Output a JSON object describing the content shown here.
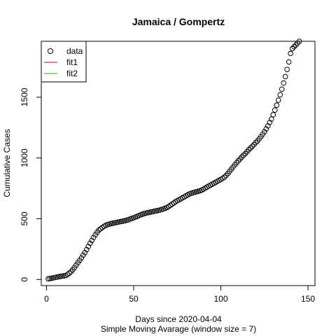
{
  "chart_data": {
    "type": "scatter",
    "title": "Jamaica / Gompertz",
    "xlabel": "Days since 2020-04-04",
    "xlabel_sub": "Simple Moving Avarage (window size = 7)",
    "ylabel": "Cumulative Cases",
    "xlim": [
      -3,
      154
    ],
    "ylim": [
      -50,
      1960
    ],
    "x_ticks": [
      0,
      50,
      100,
      150
    ],
    "y_ticks": [
      0,
      500,
      1000,
      1500
    ],
    "legend_position": "top-left",
    "legend": [
      {
        "label": "data",
        "kind": "point",
        "color": "#000000"
      },
      {
        "label": "fit1",
        "kind": "line",
        "color": "#DF536B"
      },
      {
        "label": "fit2",
        "kind": "line",
        "color": "#61D04F"
      }
    ],
    "series": [
      {
        "name": "data",
        "x": [
          1,
          2,
          3,
          4,
          5,
          6,
          7,
          8,
          9,
          10,
          11,
          12,
          13,
          14,
          15,
          16,
          17,
          18,
          19,
          20,
          21,
          22,
          23,
          24,
          25,
          26,
          27,
          28,
          29,
          30,
          31,
          32,
          33,
          34,
          35,
          36,
          37,
          38,
          39,
          40,
          41,
          42,
          43,
          44,
          45,
          46,
          47,
          48,
          49,
          50,
          51,
          52,
          53,
          54,
          55,
          56,
          57,
          58,
          59,
          60,
          61,
          62,
          63,
          64,
          65,
          66,
          67,
          68,
          69,
          70,
          71,
          72,
          73,
          74,
          75,
          76,
          77,
          78,
          79,
          80,
          81,
          82,
          83,
          84,
          85,
          86,
          87,
          88,
          89,
          90,
          91,
          92,
          93,
          94,
          95,
          96,
          97,
          98,
          99,
          100,
          101,
          102,
          103,
          104,
          105,
          106,
          107,
          108,
          109,
          110,
          111,
          112,
          113,
          114,
          115,
          116,
          117,
          118,
          119,
          120,
          121,
          122,
          123,
          124,
          125,
          126,
          127,
          128,
          129,
          130,
          131,
          132,
          133,
          134,
          135,
          136,
          137,
          138,
          139,
          140,
          141,
          142,
          143,
          144,
          145,
          146,
          147,
          148,
          149,
          150
        ],
        "y": [
          5,
          8,
          11,
          14,
          17,
          20,
          23,
          26,
          28,
          30,
          33,
          42,
          52,
          64,
          80,
          98,
          118,
          138,
          158,
          178,
          200,
          222,
          246,
          272,
          298,
          322,
          346,
          368,
          388,
          406,
          418,
          428,
          438,
          446,
          452,
          456,
          460,
          463,
          466,
          469,
          472,
          475,
          478,
          481,
          484,
          488,
          492,
          498,
          503,
          508,
          514,
          520,
          526,
          532,
          538,
          542,
          546,
          550,
          553,
          556,
          559,
          562,
          565,
          568,
          572,
          576,
          580,
          586,
          592,
          600,
          610,
          620,
          630,
          640,
          648,
          656,
          664,
          672,
          680,
          688,
          696,
          704,
          710,
          714,
          718,
          722,
          726,
          730,
          736,
          744,
          752,
          760,
          768,
          776,
          784,
          792,
          800,
          808,
          816,
          824,
          832,
          842,
          856,
          872,
          890,
          908,
          926,
          944,
          960,
          976,
          992,
          1008,
          1022,
          1036,
          1052,
          1068,
          1082,
          1096,
          1110,
          1126,
          1140,
          1158,
          1176,
          1196,
          1216,
          1240,
          1264,
          1292,
          1320,
          1356,
          1394,
          1434,
          1476,
          1520,
          1566,
          1616,
          1670,
          1728,
          1790,
          1860,
          1900,
          1915,
          1930,
          1945,
          1960,
          1975,
          1990,
          2005,
          2020,
          2035
        ]
      }
    ]
  }
}
